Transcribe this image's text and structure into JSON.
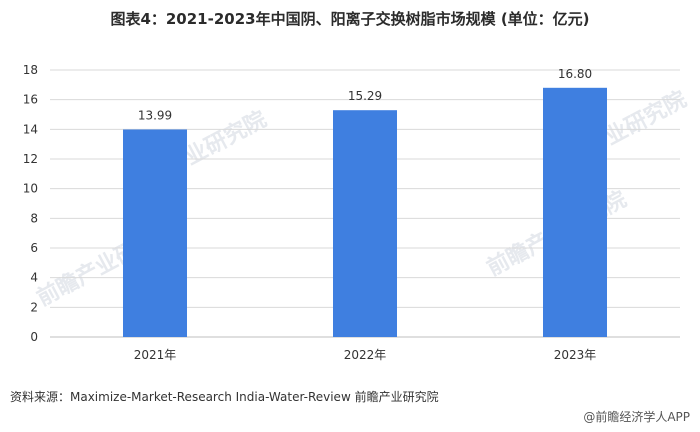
{
  "chart_data": {
    "type": "bar",
    "title": "图表4：2021-2023年中国阴、阳离子交换树脂市场规模 (单位：亿元)",
    "categories": [
      "2021年",
      "2022年",
      "2023年"
    ],
    "values": [
      13.99,
      15.29,
      16.8
    ],
    "value_labels": [
      "13.99",
      "15.29",
      "16.80"
    ],
    "ylim": [
      0,
      18
    ],
    "yticks": [
      0,
      2,
      4,
      6,
      8,
      10,
      12,
      14,
      16,
      18
    ],
    "grid": true,
    "legend": "none",
    "bar_color": "#3f7fe0",
    "grid_color": "#d9d9d9"
  },
  "source": "资料来源：Maximize-Market-Research India-Water-Review 前瞻产业研究院",
  "footer_brand": "@前瞻经济学人APP",
  "watermark": "前瞻产业研究院"
}
